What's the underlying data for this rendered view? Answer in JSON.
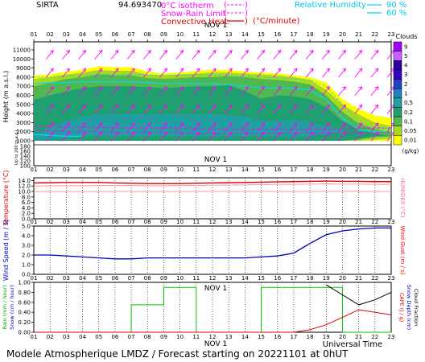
{
  "header": {
    "site": "SIRTA",
    "code": "94.693470",
    "legend_isotherm": "0°C isotherm",
    "legend_snowrain": "Snow-Rain Limit",
    "legend_convective": "Convective Heat.",
    "convective_unit": "(°C/minute)",
    "rh_label": "Relative Humidity",
    "rh_90": "90 %",
    "rh_60": "60 %"
  },
  "colors": {
    "isotherm": "#ff00ff",
    "snowrain": "#ff00ff",
    "convective": "#e00000",
    "rh": "#00d8ff",
    "wind_arrow": "#ff00ff",
    "temperature": "#d80000",
    "humidex": "#ff9999",
    "wind_speed": "#0000c0",
    "wind_gust": "#ff0000",
    "rain": "#00c800",
    "cape": "#e00000",
    "cloud_fraction": "#000000",
    "grid": "#000000"
  },
  "hours": [
    "01",
    "02",
    "03",
    "04",
    "05",
    "06",
    "07",
    "08",
    "09",
    "10",
    "11",
    "12",
    "13",
    "14",
    "15",
    "16",
    "17",
    "18",
    "19",
    "20",
    "21",
    "22",
    "23"
  ],
  "date_label": "NOV  1",
  "footer": {
    "model": "Modele Atmospherique LMDZ / Forecast starting on 20221101 at 0hUT",
    "time_axis": "Universal Time"
  },
  "chart_data": [
    {
      "type": "heatmap",
      "name": "clouds",
      "ylabel": "Height (m a.s.l.)",
      "ylabel_low": "Up to 200 m a.g.l.",
      "yticks": [
        "11000",
        "10000",
        "9000",
        "8000",
        "7000",
        "6000",
        "5000",
        "4000",
        "3000",
        "2000",
        "1000",
        "180",
        "160",
        "140",
        "120",
        "100"
      ],
      "colorbar_title": "Clouds",
      "colorbar_unit": "(g/kg)",
      "colorbar_levels": [
        "9",
        "5",
        "4",
        "3",
        "2",
        "1",
        "0.5",
        "0.2",
        "0.1",
        "0.05",
        "0.01"
      ],
      "colorbar_colors": [
        "#a000ff",
        "#c860ff",
        "#2800a0",
        "#3800c8",
        "#2040d0",
        "#2080c0",
        "#20a0a0",
        "#20a070",
        "#50b850",
        "#a8d820",
        "#ffff00"
      ],
      "cloud_layers": [
        {
          "level": "0.01",
          "color": "#ffff00",
          "top": [
            8200,
            8300,
            8600,
            8800,
            9200,
            9100,
            9100,
            8600,
            8400,
            8500,
            8700,
            8800,
            8800,
            8600,
            8500,
            8400,
            8200,
            8000,
            7400,
            5600,
            4500,
            3800,
            3500
          ],
          "base": [
            1000,
            1000,
            1000,
            1000,
            1000,
            1000,
            1000,
            1000,
            1000,
            1000,
            1000,
            1000,
            1000,
            1000,
            1000,
            1000,
            1000,
            1000,
            1000,
            1000,
            1000,
            1000,
            1000
          ]
        },
        {
          "level": "0.05",
          "color": "#a8d820",
          "top": [
            7800,
            8000,
            8300,
            8500,
            8800,
            8700,
            8700,
            8300,
            8200,
            8300,
            8400,
            8500,
            8500,
            8400,
            8300,
            8200,
            8000,
            7700,
            6600,
            5000,
            3900,
            3000,
            2600
          ],
          "base": [
            1000,
            1000,
            1000,
            1000,
            1000,
            1000,
            1000,
            1000,
            1000,
            1000,
            1000,
            1000,
            1000,
            1000,
            1000,
            1000,
            1000,
            1000,
            1000,
            1000,
            1000,
            1100,
            1200
          ]
        },
        {
          "level": "0.1",
          "color": "#50b850",
          "top": [
            7000,
            7400,
            7800,
            8000,
            8300,
            8200,
            8200,
            7900,
            7800,
            7900,
            8000,
            8000,
            8100,
            8000,
            7800,
            7700,
            7500,
            7200,
            6000,
            4200,
            2900,
            2300,
            1900
          ],
          "base": [
            1000,
            1000,
            1000,
            1000,
            1000,
            1000,
            1000,
            1000,
            1000,
            1000,
            1000,
            1000,
            1000,
            1000,
            1000,
            1000,
            1000,
            1000,
            1000,
            1000,
            1100,
            1400,
            1500
          ]
        },
        {
          "level": "0.2",
          "color": "#20a070",
          "top": [
            5500,
            6000,
            6400,
            6800,
            7000,
            7000,
            7000,
            6900,
            6800,
            6900,
            7000,
            7000,
            7100,
            6500,
            5600,
            6000,
            5900,
            5600,
            4700,
            3200,
            2300,
            1800,
            1500
          ],
          "base": [
            1000,
            1000,
            1000,
            1000,
            1000,
            1000,
            1000,
            1000,
            1000,
            1000,
            1000,
            1000,
            1000,
            1000,
            1000,
            1000,
            1000,
            1000,
            1000,
            1000,
            1200,
            1500,
            1500
          ]
        },
        {
          "level": "0.5",
          "color": "#20a0a0",
          "top": [
            1500,
            2500,
            3200,
            3700,
            3900,
            3900,
            3900,
            3900,
            3900,
            3900,
            3900,
            3900,
            3800,
            3700,
            3200,
            3200,
            3300,
            3100,
            2600,
            2200,
            0,
            0,
            0
          ],
          "base": [
            1000,
            1100,
            1300,
            1500,
            1500,
            1500,
            1500,
            1500,
            1500,
            1500,
            1500,
            1500,
            1500,
            1500,
            1500,
            1500,
            1500,
            1500,
            1700,
            1900,
            0,
            0,
            0
          ]
        }
      ],
      "isotherm_0C": [
        2600,
        2600,
        2500,
        2500,
        2500,
        2400,
        2400,
        2400,
        2400,
        2400,
        2300,
        2300,
        2300,
        2300,
        2300,
        2300,
        2300,
        2300,
        2300,
        2300,
        2400,
        2400,
        2400
      ],
      "snow_rain_limit": [
        2100,
        2100,
        2000,
        2000,
        2000,
        1900,
        1900,
        1900,
        1900,
        1900,
        1800,
        1800,
        1800,
        1800,
        1800,
        1800,
        1800,
        1800,
        1800,
        1800,
        1900,
        1900,
        1900
      ],
      "relative_humidity_90": [
        {
          "x": [
            1,
            2,
            3,
            4,
            5,
            6,
            7,
            8,
            9,
            10,
            11,
            12,
            13,
            14,
            15,
            16,
            17,
            18,
            19,
            20,
            21,
            22,
            23
          ],
          "y": [
            7300,
            7400,
            7400,
            7500,
            7500,
            7500,
            7500,
            7400,
            7300,
            7300,
            7300,
            7300,
            7200,
            7000,
            6800,
            6800,
            6800,
            6600,
            5500,
            3500,
            2200,
            2000,
            2000
          ]
        },
        {
          "x": [
            1,
            2,
            3,
            4
          ],
          "y": [
            1700,
            1600,
            1500,
            1500
          ]
        }
      ],
      "relative_humidity_60": [
        {
          "x": [
            1,
            2,
            3,
            4,
            5,
            6,
            7,
            8,
            9,
            10,
            11,
            12,
            13,
            14,
            15,
            16,
            17,
            18,
            19,
            20,
            21,
            22,
            23
          ],
          "y": [
            8000,
            8000,
            8100,
            8200,
            8300,
            8300,
            8300,
            8200,
            8200,
            8200,
            8200,
            8200,
            8200,
            8100,
            8000,
            7900,
            7800,
            7700,
            7000,
            5000,
            3000,
            2500,
            2400
          ]
        }
      ],
      "wind_rows_m": [
        10500,
        8500,
        6500,
        4500,
        2500,
        1500
      ]
    },
    {
      "type": "line",
      "name": "temperature",
      "ylabel": "Temperature (°C)",
      "ylabel_right": "HUMIDEX (°C)",
      "yticks": [
        "14.0",
        "12.0",
        "10.0",
        "8.0",
        "6.0",
        "4.0",
        "2.0",
        "0.0"
      ],
      "ylim": [
        0,
        15
      ],
      "series": [
        {
          "name": "Temperature",
          "values": [
            13.1,
            13.2,
            13.3,
            13.3,
            13.3,
            13.1,
            13.0,
            12.9,
            12.9,
            12.9,
            13.0,
            13.1,
            13.2,
            13.3,
            13.4,
            13.5,
            13.6,
            13.7,
            13.8,
            13.7,
            13.7,
            13.6,
            13.6
          ]
        },
        {
          "name": "HUMIDEX",
          "values": [
            12.0,
            12.1,
            12.1,
            12.1,
            12.2,
            12.2,
            12.2,
            12.1,
            12.1,
            12.2,
            12.2,
            12.3,
            12.3,
            12.4,
            12.5,
            12.6,
            12.6,
            12.7,
            12.8,
            12.7,
            12.7,
            12.6,
            12.6
          ]
        }
      ],
      "reference_line": 10.0
    },
    {
      "type": "line",
      "name": "wind",
      "ylabel": "Wind Speed (m / s)",
      "ylabel_right": "Wind Gust (m / s)",
      "yticks": [
        "5.0",
        "4.0",
        "3.0",
        "2.0",
        "1.0",
        "0.0"
      ],
      "ylim": [
        0,
        5
      ],
      "series": [
        {
          "name": "Wind Speed",
          "values": [
            2.0,
            2.0,
            1.9,
            1.8,
            1.7,
            1.6,
            1.6,
            1.7,
            1.7,
            1.7,
            1.7,
            1.7,
            1.7,
            1.7,
            1.8,
            1.9,
            2.2,
            3.2,
            4.1,
            4.5,
            4.7,
            4.8,
            4.8
          ]
        }
      ]
    },
    {
      "type": "line",
      "name": "precip",
      "ylabel": "Rain (mm / hour)",
      "ylabel2": "Snow (cm / hour)",
      "ylabel_right": "CAPE (J / g)",
      "ylabel_right2": "Snow Depth (cm)",
      "ylabel_right3": "Cloud Fraction",
      "yticks": [
        "1.00",
        "0.80",
        "0.60",
        "0.40",
        "0.20",
        "0.00"
      ],
      "ylim": [
        0,
        1
      ],
      "series": [
        {
          "name": "Rain",
          "values": [
            0.0,
            0.0,
            0.0,
            0.0,
            0.0,
            0.0,
            0.55,
            0.55,
            0.9,
            0.9,
            0.0,
            0.0,
            0.0,
            0.0,
            0.9,
            0.9,
            0.9,
            0.9,
            0.9,
            0.0,
            0.0,
            0.0,
            0.0
          ],
          "step": true
        },
        {
          "name": "CAPE",
          "values": [
            0.0,
            0.0,
            0.0,
            0.0,
            0.0,
            0.0,
            0.0,
            0.0,
            0.0,
            0.0,
            0.0,
            0.0,
            0.0,
            0.0,
            0.0,
            0.0,
            0.0,
            0.05,
            0.15,
            0.3,
            0.45,
            0.4,
            0.35
          ]
        },
        {
          "name": "Cloud Fraction",
          "values": [
            null,
            null,
            null,
            null,
            null,
            null,
            null,
            null,
            null,
            null,
            null,
            null,
            null,
            null,
            null,
            null,
            null,
            null,
            0.95,
            0.75,
            0.55,
            0.65,
            0.8
          ]
        }
      ]
    }
  ]
}
